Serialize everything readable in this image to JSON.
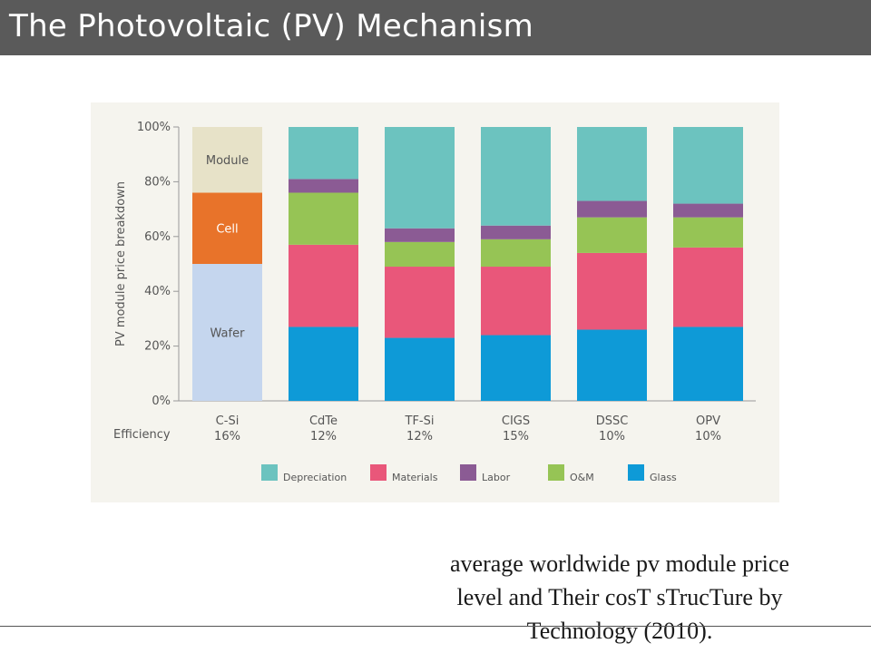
{
  "slide": {
    "title": "The Photovoltaic (PV) Mechanism",
    "caption_lines": [
      "average worldwide pv module price",
      "level and Their cosT sTrucTure by",
      "Technology (2010)."
    ]
  },
  "chart_data": {
    "type": "bar",
    "stacked": true,
    "ylabel": "PV module price breakdown",
    "ylim": [
      0,
      100
    ],
    "yticks": [
      "0%",
      "20%",
      "40%",
      "60%",
      "80%",
      "100%"
    ],
    "categories": [
      "C-Si",
      "CdTe",
      "TF-Si",
      "CIGS",
      "DSSC",
      "OPV"
    ],
    "efficiency_label": "Efficiency",
    "efficiencies": [
      "16%",
      "12%",
      "12%",
      "15%",
      "10%",
      "10%"
    ],
    "csi_series": [
      {
        "name": "Wafer",
        "value": 50,
        "color": "#c5d6ee"
      },
      {
        "name": "Cell",
        "value": 26,
        "color": "#e8732a"
      },
      {
        "name": "Module",
        "value": 24,
        "color": "#e7e2c8"
      }
    ],
    "series": [
      {
        "name": "Glass",
        "color": "#0e9ad7",
        "values": [
          null,
          27,
          23,
          24,
          26,
          27
        ]
      },
      {
        "name": "Materials",
        "color": "#e9577a",
        "values": [
          null,
          30,
          26,
          25,
          28,
          29
        ]
      },
      {
        "name": "O&M",
        "color": "#96c455",
        "values": [
          null,
          19,
          9,
          10,
          13,
          11
        ]
      },
      {
        "name": "Labor",
        "color": "#8b5b94",
        "values": [
          null,
          5,
          5,
          5,
          6,
          5
        ]
      },
      {
        "name": "Depreciation",
        "color": "#6cc3bf",
        "values": [
          null,
          19,
          37,
          36,
          27,
          28
        ]
      }
    ],
    "legend": [
      "Depreciation",
      "Materials",
      "Labor",
      "O&M",
      "Glass"
    ],
    "legend_position": "bottom",
    "grid": false
  }
}
